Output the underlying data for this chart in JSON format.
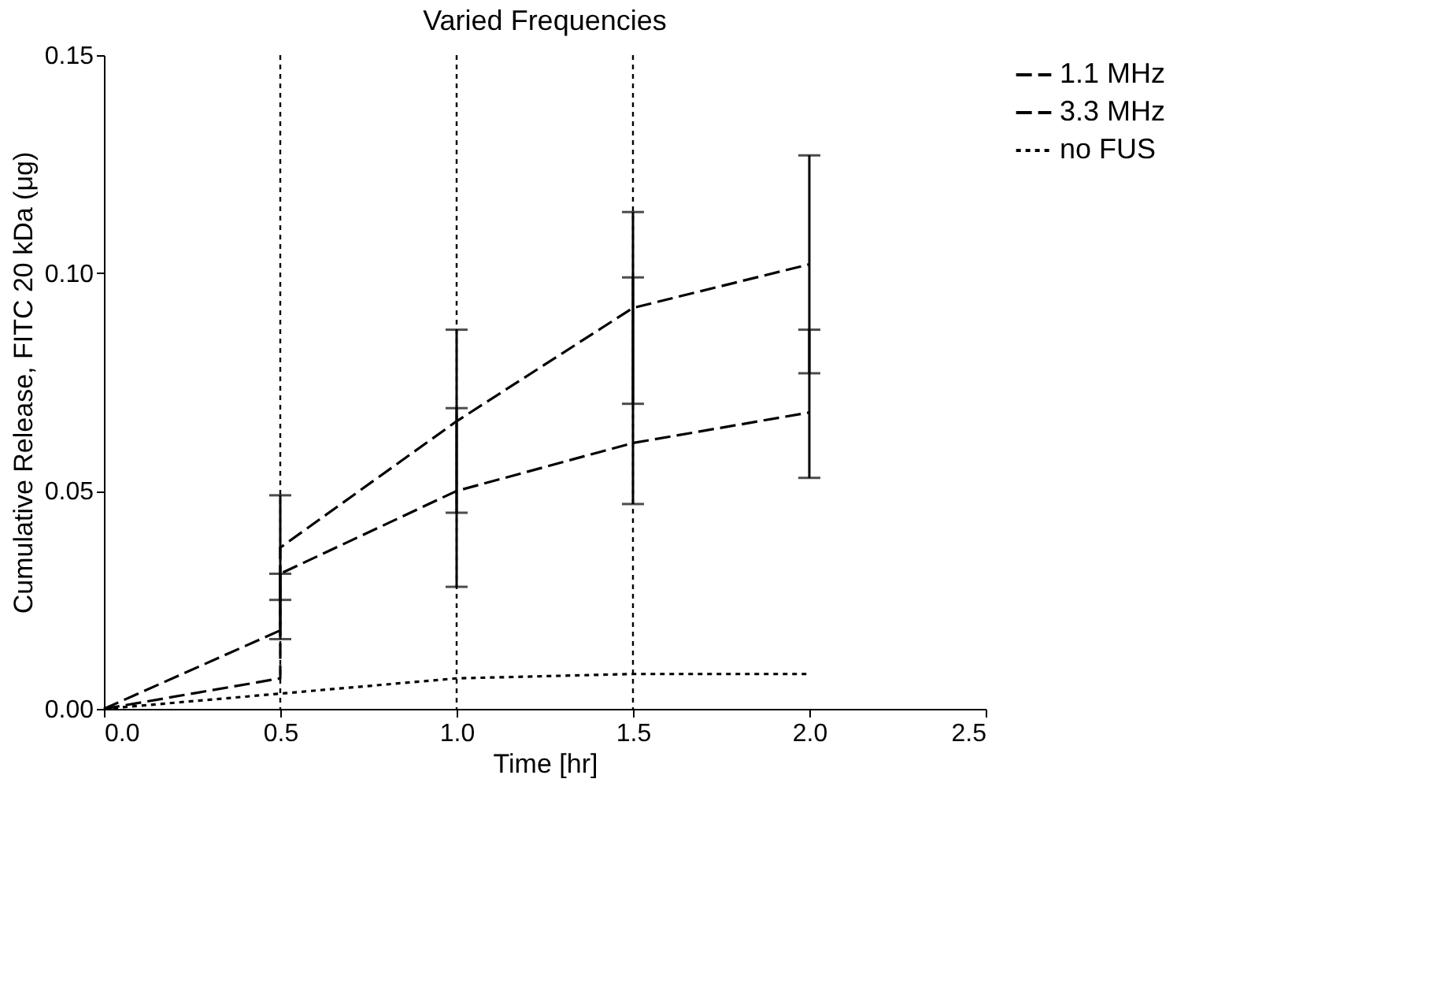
{
  "chart_data": {
    "type": "line",
    "title": "Varied Frequencies",
    "xlabel": "Time [hr]",
    "ylabel": "Cumulative Release, FITC 20 kDa (μg)",
    "xlim": [
      0,
      2.5
    ],
    "ylim": [
      0,
      0.15
    ],
    "xticks": [
      {
        "value": 0,
        "label": "0.0"
      },
      {
        "value": 0.5,
        "label": "0.5"
      },
      {
        "value": 1,
        "label": "1.0"
      },
      {
        "value": 1.5,
        "label": "1.5"
      },
      {
        "value": 2,
        "label": "2.0"
      },
      {
        "value": 2.5,
        "label": "2.5"
      }
    ],
    "yticks": [
      {
        "value": 0,
        "label": "0.00"
      },
      {
        "value": 0.05,
        "label": "0.05"
      },
      {
        "value": 0.1,
        "label": "0.10"
      },
      {
        "value": 0.15,
        "label": "0.15"
      }
    ],
    "grid": false,
    "legend": "right",
    "marker": "none",
    "ref_lines": [
      {
        "axis": "x",
        "value": 0.5,
        "label": null,
        "color": "#000000",
        "line_style": "dotted"
      },
      {
        "axis": "x",
        "value": 1.0,
        "label": null,
        "color": "#000000",
        "line_style": "dotted"
      },
      {
        "axis": "x",
        "value": 1.5,
        "label": null,
        "color": "#000000",
        "line_style": "dotted"
      }
    ],
    "series": [
      {
        "name": "1.1 MHz",
        "color": "#000000",
        "line_style": "dashed",
        "x": [
          0,
          0.5,
          0.5,
          1,
          1.5,
          2
        ],
        "values": [
          0,
          0.007,
          0.031,
          0.05,
          0.061,
          0.068
        ],
        "errors": [
          null,
          null,
          [
            0.016,
            0.031
          ],
          [
            0.028,
            0.069
          ],
          [
            0.047,
            0.099
          ],
          [
            0.053,
            0.087
          ]
        ]
      },
      {
        "name": "3.3 MHz",
        "color": "#000000",
        "line_style": "dashed",
        "x": [
          0,
          0.5,
          0.5,
          1,
          1.5,
          2
        ],
        "values": [
          0,
          0.018,
          0.037,
          0.066,
          0.092,
          0.102
        ],
        "errors": [
          null,
          null,
          [
            0.025,
            0.049
          ],
          [
            0.045,
            0.087
          ],
          [
            0.07,
            0.114
          ],
          [
            0.077,
            0.127
          ]
        ]
      },
      {
        "name": "no FUS",
        "color": "#000000",
        "line_style": "dotted",
        "x": [
          0,
          0.5,
          1,
          1.5,
          2
        ],
        "values": [
          0,
          0.0035,
          0.007,
          0.008,
          0.008
        ]
      }
    ]
  }
}
